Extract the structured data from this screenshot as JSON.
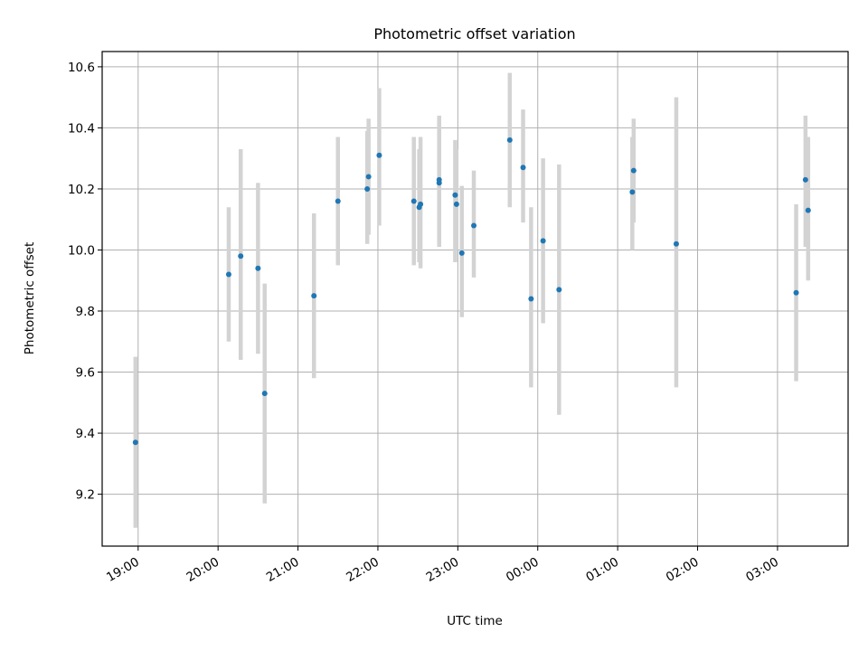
{
  "chart_data": {
    "type": "scatter",
    "title": "Photometric offset variation",
    "xlabel": "UTC time",
    "ylabel": "Photometric offset",
    "grid": true,
    "ylim": [
      9.03,
      10.65
    ],
    "xlim": [
      "18:33",
      "03:53"
    ],
    "y_ticks": [
      9.2,
      9.4,
      9.6,
      9.8,
      10.0,
      10.2,
      10.4,
      10.6
    ],
    "x_ticks": [
      "19:00",
      "20:00",
      "21:00",
      "22:00",
      "23:00",
      "00:00",
      "01:00",
      "02:00",
      "03:00"
    ],
    "series": [
      {
        "color": "#1f77b4",
        "error_color": "#d3d3d3",
        "points": [
          {
            "t": "18:58",
            "y": 9.37,
            "lo": 9.09,
            "hi": 9.65
          },
          {
            "t": "20:08",
            "y": 9.92,
            "lo": 9.7,
            "hi": 10.14
          },
          {
            "t": "20:17",
            "y": 9.98,
            "lo": 9.64,
            "hi": 10.33
          },
          {
            "t": "20:30",
            "y": 9.94,
            "lo": 9.66,
            "hi": 10.22
          },
          {
            "t": "20:35",
            "y": 9.53,
            "lo": 9.17,
            "hi": 9.89
          },
          {
            "t": "21:12",
            "y": 9.85,
            "lo": 9.58,
            "hi": 10.12
          },
          {
            "t": "21:30",
            "y": 10.16,
            "lo": 9.95,
            "hi": 10.37
          },
          {
            "t": "21:52",
            "y": 10.2,
            "lo": 10.02,
            "hi": 10.39
          },
          {
            "t": "21:53",
            "y": 10.24,
            "lo": 10.05,
            "hi": 10.43
          },
          {
            "t": "22:01",
            "y": 10.31,
            "lo": 10.08,
            "hi": 10.53
          },
          {
            "t": "22:27",
            "y": 10.16,
            "lo": 9.95,
            "hi": 10.37
          },
          {
            "t": "22:31",
            "y": 10.14,
            "lo": 9.96,
            "hi": 10.33
          },
          {
            "t": "22:32",
            "y": 10.15,
            "lo": 9.94,
            "hi": 10.37
          },
          {
            "t": "22:46",
            "y": 10.22,
            "lo": 10.01,
            "hi": 10.43
          },
          {
            "t": "22:46",
            "y": 10.23,
            "lo": 10.02,
            "hi": 10.44
          },
          {
            "t": "22:58",
            "y": 10.18,
            "lo": 9.96,
            "hi": 10.36
          },
          {
            "t": "22:59",
            "y": 10.15,
            "lo": 10.0,
            "hi": 10.33
          },
          {
            "t": "23:03",
            "y": 9.99,
            "lo": 9.78,
            "hi": 10.21
          },
          {
            "t": "23:12",
            "y": 10.08,
            "lo": 9.91,
            "hi": 10.26
          },
          {
            "t": "23:39",
            "y": 10.36,
            "lo": 10.14,
            "hi": 10.58
          },
          {
            "t": "23:49",
            "y": 10.27,
            "lo": 10.09,
            "hi": 10.46
          },
          {
            "t": "23:55",
            "y": 9.84,
            "lo": 9.55,
            "hi": 10.14
          },
          {
            "t": "00:04",
            "y": 10.03,
            "lo": 9.76,
            "hi": 10.3
          },
          {
            "t": "00:16",
            "y": 9.87,
            "lo": 9.46,
            "hi": 10.28
          },
          {
            "t": "01:11",
            "y": 10.19,
            "lo": 10.0,
            "hi": 10.37
          },
          {
            "t": "01:12",
            "y": 10.26,
            "lo": 10.09,
            "hi": 10.43
          },
          {
            "t": "01:44",
            "y": 10.02,
            "lo": 9.55,
            "hi": 10.5
          },
          {
            "t": "03:14",
            "y": 9.86,
            "lo": 9.57,
            "hi": 10.15
          },
          {
            "t": "03:21",
            "y": 10.23,
            "lo": 10.01,
            "hi": 10.44
          },
          {
            "t": "03:23",
            "y": 10.13,
            "lo": 9.9,
            "hi": 10.37
          }
        ]
      }
    ]
  }
}
